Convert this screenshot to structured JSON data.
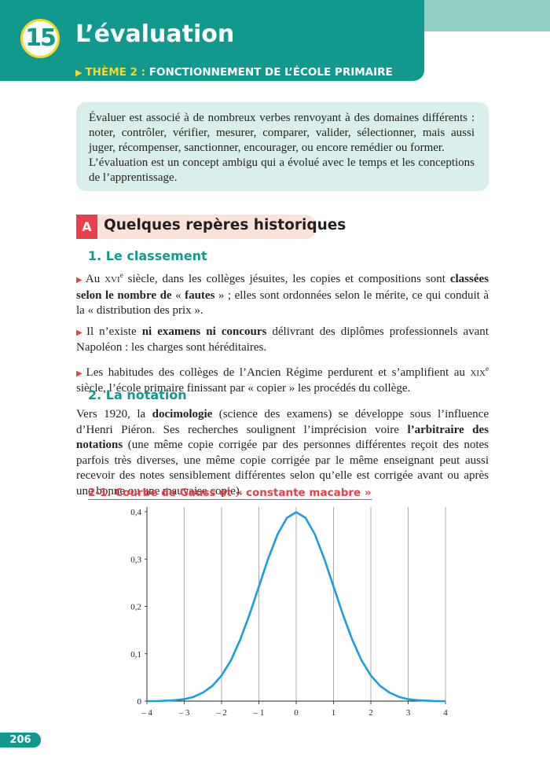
{
  "header": {
    "number": "15",
    "title": "L’évaluation",
    "theme_label": "THÈME 2 :",
    "theme_title": "FONCTIONNEMENT DE L’ÉCOLE PRIMAIRE"
  },
  "intro": {
    "paragraphs": [
      "Évaluer est associé à de nombreux verbes renvoyant à des domaines différents : noter, contrôler, vérifier, mesurer, comparer, valider, sélectionner, mais aussi juger, récompenser, sanctionner, encourager, ou encore remédier ou former.",
      "L’évaluation est un concept ambigu qui a évolué avec le temps et les conceptions de l’apprentissage."
    ]
  },
  "section": {
    "letter": "A",
    "title": "Quelques repères historiques",
    "subsections": [
      {
        "title": "1. Le classement",
        "items": [
          [
            "Au ",
            "xvi",
            "e",
            " siècle, dans les collèges jésuites, les copies et compositions sont ",
            "classées selon le nombre de",
            " « ",
            "fautes",
            " » ; elles sont ordonnées selon le mérite, ce qui conduit à la « distribution des prix »."
          ],
          [
            "Il n’existe ",
            "ni examens ni concours",
            " délivrant des diplômes professionnels avant Napoléon : les charges sont héréditaires."
          ],
          [
            "Les habitudes des collèges de l’Ancien Régime perdurent et s’amplifient au ",
            "xix",
            "e",
            " siècle, l’école primaire finissant par « copier » les procédés du collège."
          ]
        ]
      },
      {
        "title": "2. La notation",
        "paragraph": [
          "Vers 1920, la ",
          "docimologie",
          " (science des examens) se développe sous l’influence d’Henri Piéron. Ses recherches soulignent l’imprécision voire ",
          "l’arbitraire des notations",
          " (une même copie corrigée par des personnes différentes reçoit des notes parfois très diverses, une même copie corrigée par le même enseignant peut aussi recevoir des notes sensiblement différentes selon qu’elle est corrigée avant ou après une bonne ou une mauvaise copie)."
        ]
      }
    ]
  },
  "figure": {
    "type": "line",
    "title": "2-1. Courbe de Gauss et « constante macabre »",
    "color": "#1b9de0",
    "grid": true,
    "x": [
      -4,
      -3.75,
      -3.5,
      -3.25,
      -3,
      -2.75,
      -2.5,
      -2.25,
      -2,
      -1.75,
      -1.5,
      -1.25,
      -1,
      -0.75,
      -0.5,
      -0.25,
      0,
      0.25,
      0.5,
      0.75,
      1,
      1.25,
      1.5,
      1.75,
      2,
      2.25,
      2.5,
      2.75,
      3,
      3.25,
      3.5,
      3.75,
      4
    ],
    "values": [
      0.0,
      0.0,
      0.001,
      0.002,
      0.004,
      0.009,
      0.018,
      0.032,
      0.054,
      0.086,
      0.13,
      0.183,
      0.242,
      0.301,
      0.352,
      0.387,
      0.399,
      0.387,
      0.352,
      0.301,
      0.242,
      0.183,
      0.13,
      0.086,
      0.054,
      0.032,
      0.018,
      0.009,
      0.004,
      0.002,
      0.001,
      0.0,
      0.0
    ],
    "xlim": [
      -4,
      4
    ],
    "ylim": [
      0,
      0.4
    ],
    "xticks": [
      {
        "value": -4,
        "label": "– 4"
      },
      {
        "value": -3,
        "label": "– 3"
      },
      {
        "value": -2,
        "label": "– 2"
      },
      {
        "value": -1,
        "label": "– 1"
      },
      0,
      1,
      2,
      3,
      4
    ],
    "yticks": [
      0,
      {
        "value": 0.1,
        "label": "0,1"
      },
      {
        "value": 0.2,
        "label": "0,2"
      },
      {
        "value": 0.3,
        "label": "0,3"
      },
      {
        "value": 0.4,
        "label": "0,4"
      }
    ]
  },
  "footer": {
    "page": "206"
  }
}
